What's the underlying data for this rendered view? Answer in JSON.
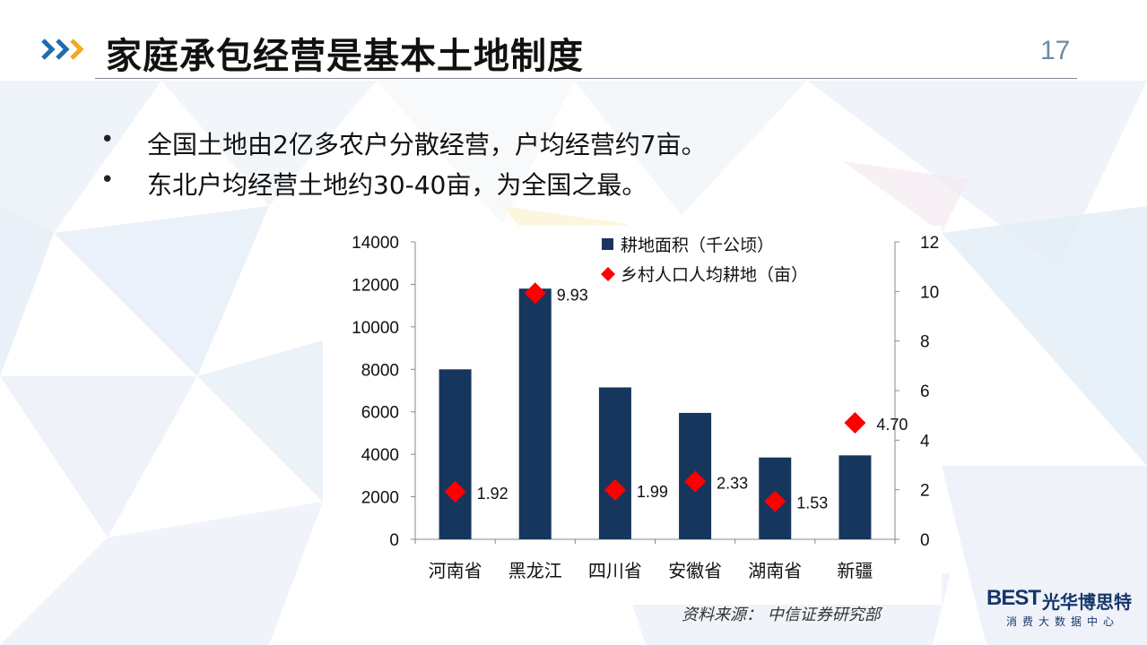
{
  "slide": {
    "title": "家庭承包经营是基本土地制度",
    "page_number": "17",
    "bullets": [
      "全国土地由2亿多农户分散经营，户均经营约7亩。",
      "东北户均经营土地约30-40亩，为全国之最。"
    ],
    "source": "资料来源：    中信证券研究部"
  },
  "logo": {
    "mark": "BEST",
    "name": "光华博思特",
    "subtitle": "消费大数据中心"
  },
  "colors": {
    "bar": "#17365d",
    "marker": "#ff0000",
    "accent_orange": "#f5a623",
    "accent_blue": "#1f6cb0"
  },
  "chart_data": {
    "type": "bar",
    "categories": [
      "河南省",
      "黑龙江",
      "四川省",
      "安徽省",
      "湖南省",
      "新疆"
    ],
    "series": [
      {
        "name": "耕地面积（千公顷）",
        "type": "bar",
        "axis": "left",
        "values": [
          8000,
          11800,
          7150,
          5950,
          3850,
          3950
        ]
      },
      {
        "name": "乡村人口人均耕地（亩）",
        "type": "scatter",
        "axis": "right",
        "values": [
          1.92,
          9.93,
          1.99,
          2.33,
          1.53,
          4.7
        ],
        "labels": [
          "1.92",
          "9.93",
          "1.99",
          "2.33",
          "1.53",
          "4.70"
        ]
      }
    ],
    "y_left": {
      "min": 0,
      "max": 14000,
      "ticks": [
        "0",
        "2000",
        "4000",
        "6000",
        "8000",
        "10000",
        "12000",
        "14000"
      ]
    },
    "y_right": {
      "min": 0,
      "max": 12,
      "ticks": [
        "0",
        "2",
        "4",
        "6",
        "8",
        "10",
        "12"
      ]
    },
    "legend_position": "top-right",
    "grid": false
  }
}
